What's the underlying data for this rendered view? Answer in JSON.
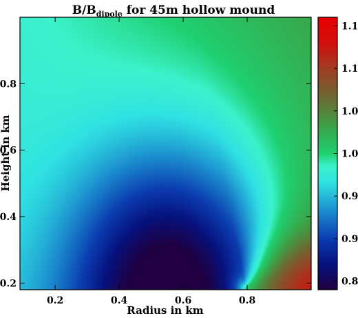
{
  "chart_data": {
    "type": "heatmap",
    "title": {
      "main": "B/B",
      "sub": "dipole",
      "rest": " for 45m hollow mound"
    },
    "xlabel": "Radius in km",
    "ylabel": "Height in km",
    "xlim": [
      0.09,
      1.0
    ],
    "ylim": [
      0.18,
      1.0
    ],
    "x_ticks": [
      0.2,
      0.4,
      0.6,
      0.8
    ],
    "y_ticks": [
      0.2,
      0.4,
      0.6,
      0.8
    ],
    "x_tick_labels": [
      "0.2",
      "0.4",
      "0.6",
      "0.8"
    ],
    "y_tick_labels": [
      "0.2",
      "0.4",
      "0.6",
      "0.8"
    ],
    "colorbar": {
      "range": [
        0.84,
        1.16
      ],
      "ticks": [
        0.85,
        0.9,
        0.95,
        1.0,
        1.05,
        1.1,
        1.15
      ],
      "tick_labels": [
        "0.85",
        "0.90",
        "0.95",
        "1.00",
        "1.05",
        "1.10",
        "1.15"
      ],
      "colormap": [
        [
          0.84,
          "#200040"
        ],
        [
          0.87,
          "#06127e"
        ],
        [
          0.9,
          "#0b3db0"
        ],
        [
          0.93,
          "#1a86cc"
        ],
        [
          0.965,
          "#2fe1e3"
        ],
        [
          0.985,
          "#3cf2cc"
        ],
        [
          1.0,
          "#1fd070"
        ],
        [
          1.03,
          "#3aa54a"
        ],
        [
          1.065,
          "#6c6a34"
        ],
        [
          1.1,
          "#a03c22"
        ],
        [
          1.13,
          "#d2100c"
        ],
        [
          1.16,
          "#e80000"
        ]
      ]
    },
    "feature_notes": [
      {
        "x": 0.55,
        "y": 0.19,
        "value": 0.85
      },
      {
        "x": 0.8,
        "y": 0.19,
        "value": 1.0
      },
      {
        "x": 0.97,
        "y": 0.22,
        "value": 1.15
      },
      {
        "x": 0.1,
        "y": 1.0,
        "value": 0.985
      }
    ]
  }
}
